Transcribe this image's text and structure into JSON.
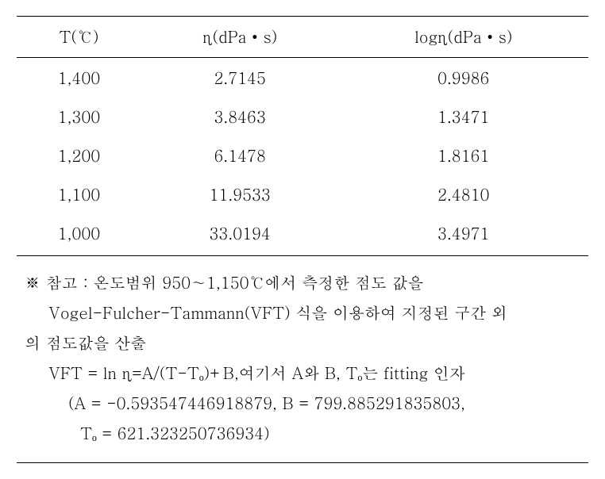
{
  "table": {
    "columns": [
      "T(℃)",
      "η(dPa • s)",
      "logη(dPa • s)"
    ],
    "rows": [
      [
        "1,400",
        "2.7145",
        "0.9986"
      ],
      [
        "1,300",
        "3.8463",
        "1.3471"
      ],
      [
        "1,200",
        "6.1478",
        "1.8161"
      ],
      [
        "1,100",
        "11.9533",
        "2.4810"
      ],
      [
        "1,000",
        "33.0194",
        "3.4971"
      ]
    ],
    "column_widths": [
      "33%",
      "33%",
      "34%"
    ],
    "border_color": "#000000",
    "font_size_pt": 15,
    "background_color": "#ffffff"
  },
  "note": {
    "line1": "※  참고 : 온도범위 950∼1,150℃에서 측정한 점도 값을",
    "line2": "Vogel-Fulcher-Tammann(VFT) 식을 이용하여 지정된 구간 외",
    "line3": "의 점도값을 산출",
    "line4": "VFT = ln η=A/(T-Tₒ)+B,여기서 A와 B, Tₒ는 fitting 인자",
    "line5": "(A = -0.593547446918879, B = 799.885291835803,",
    "line6": "Tₒ = 621.323250736934)"
  }
}
